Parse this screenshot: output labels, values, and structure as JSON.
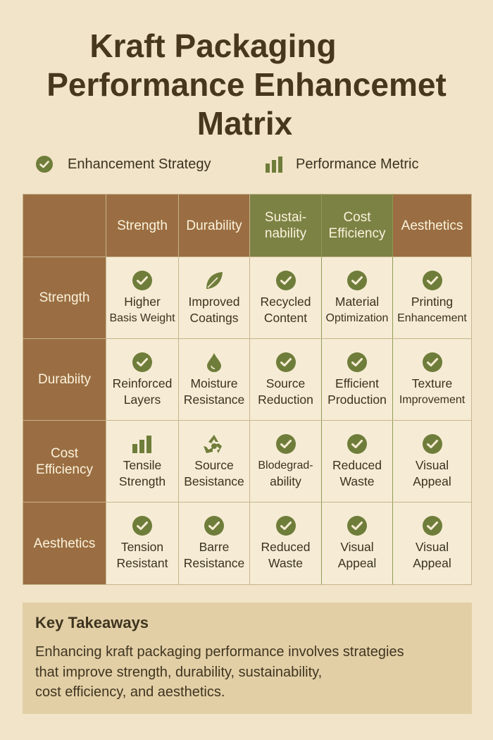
{
  "title": {
    "line1": "Kraft Packaging",
    "line2": "Performance Enhancemet",
    "line3": "Matrix"
  },
  "legend": {
    "enhancement_label": "Enhancement Strategy",
    "enhancement_icon": "check-circle-icon",
    "performance_label": "Performance Metric",
    "performance_icon": "bar-chart-icon"
  },
  "matrix": {
    "columns": [
      {
        "label": [
          "Strength"
        ],
        "color": "#9a6e42"
      },
      {
        "label": [
          "Durability"
        ],
        "color": "#9a6e42"
      },
      {
        "label": [
          "Sustai-",
          "nability"
        ],
        "color": "#7c8244"
      },
      {
        "label": [
          "Cost",
          "Efficiency"
        ],
        "color": "#7c8244"
      },
      {
        "label": [
          "Aesthetics"
        ],
        "color": "#9a6e42"
      }
    ],
    "rows": [
      {
        "label": [
          "Strength"
        ],
        "cells": [
          {
            "icon": "check-circle-icon",
            "text": [
              "Higher",
              "Basis Weight"
            ]
          },
          {
            "icon": "leaf-icon",
            "text": [
              "Improved",
              "Coatings"
            ]
          },
          {
            "icon": "check-circle-icon",
            "text": [
              "Recycled",
              "Content"
            ]
          },
          {
            "icon": "check-circle-icon",
            "text": [
              "Material",
              "Optimization"
            ]
          },
          {
            "icon": "check-circle-icon",
            "text": [
              "Printing",
              "Enhancement"
            ]
          }
        ]
      },
      {
        "label": [
          "Durabiity"
        ],
        "cells": [
          {
            "icon": "check-circle-icon",
            "text": [
              "Reinforced",
              "Layers"
            ]
          },
          {
            "icon": "water-drop-icon",
            "text": [
              "Moisture",
              "Resistance"
            ]
          },
          {
            "icon": "check-circle-icon",
            "text": [
              "Source",
              "Reduction"
            ]
          },
          {
            "icon": "check-circle-icon",
            "text": [
              "Efficient",
              "Production"
            ]
          },
          {
            "icon": "check-circle-icon",
            "text": [
              "Texture",
              "Improvement"
            ]
          }
        ]
      },
      {
        "label": [
          "Cost",
          "Efficiency"
        ],
        "cells": [
          {
            "icon": "bar-chart-icon",
            "text": [
              "Tensile",
              "Strength"
            ]
          },
          {
            "icon": "recycle-icon",
            "text": [
              "Source",
              "Besistance"
            ]
          },
          {
            "icon": "check-circle-icon",
            "text": [
              "Blodegrad-",
              "ability"
            ]
          },
          {
            "icon": "check-circle-icon",
            "text": [
              "Reduced",
              "Waste"
            ]
          },
          {
            "icon": "check-circle-icon",
            "text": [
              "Visual",
              "Appeal"
            ]
          }
        ]
      },
      {
        "label": [
          "Aesthetics"
        ],
        "cells": [
          {
            "icon": "check-circle-icon",
            "text": [
              "Tension",
              "Resistant"
            ]
          },
          {
            "icon": "check-circle-icon",
            "text": [
              "Barre",
              "Resistance"
            ]
          },
          {
            "icon": "check-circle-icon",
            "text": [
              "Reduced",
              "Waste"
            ]
          },
          {
            "icon": "check-circle-icon",
            "text": [
              "Visual",
              "Appeal"
            ]
          },
          {
            "icon": "check-circle-icon",
            "text": [
              "Visual",
              "Appeal"
            ]
          }
        ]
      }
    ]
  },
  "takeaways": {
    "heading": "Key Takeaways",
    "lines": [
      "Enhancing kraft packaging performance involves strategies",
      "that improve strength, durability, sustainability,",
      "cost efficiency, and aesthetics."
    ]
  },
  "colors": {
    "background": "#f2e4c8",
    "brown": "#9a6e42",
    "olive": "#7c8244",
    "icon_green": "#6f7d3a",
    "cell": "#f6ecd5",
    "takeaway_bg": "#e3cfa6"
  }
}
